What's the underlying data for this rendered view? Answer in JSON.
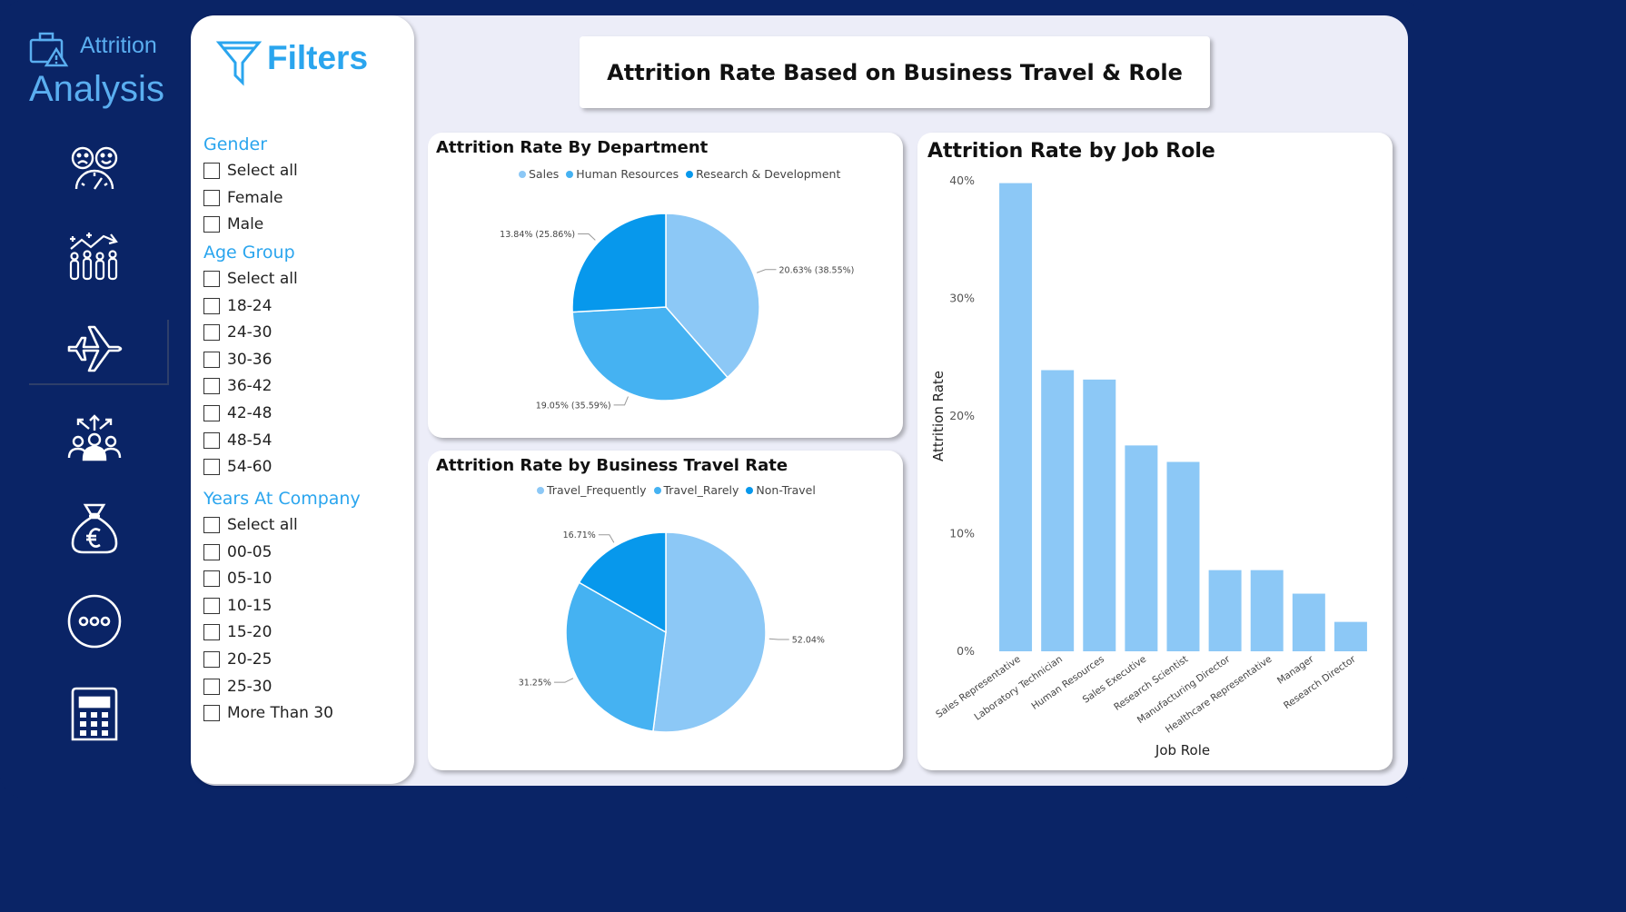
{
  "sidebar": {
    "brand_line1": "Attrition",
    "brand_line2": "Analysis",
    "items": [
      {
        "icon": "satisfaction-gauge-icon"
      },
      {
        "icon": "workforce-growth-icon"
      },
      {
        "icon": "airplane-icon",
        "active": true
      },
      {
        "icon": "team-directions-icon"
      },
      {
        "icon": "euro-money-bag-icon"
      },
      {
        "icon": "more-options-icon"
      },
      {
        "icon": "calculator-icon"
      }
    ]
  },
  "filters": {
    "title": "Filters",
    "groups": [
      {
        "title": "Gender",
        "options": [
          "Select all",
          "Female",
          "Male"
        ]
      },
      {
        "title": "Age Group",
        "options": [
          "Select all",
          "18-24",
          "24-30",
          "30-36",
          "36-42",
          "42-48",
          "48-54",
          "54-60"
        ]
      },
      {
        "title": "Years At Company",
        "options": [
          "Select all",
          "00-05",
          "05-10",
          "10-15",
          "15-20",
          "20-25",
          "25-30",
          "More Than 30"
        ]
      }
    ]
  },
  "header": {
    "title": "Attrition Rate Based on Business Travel & Role"
  },
  "colors": {
    "navy": "#0a2466",
    "accent": "#2aa5ee",
    "light_blue": "#8cc8f6",
    "mid_blue": "#45b2f2",
    "deep_blue": "#0798ec"
  },
  "chart_data": [
    {
      "type": "pie",
      "title": "Attrition Rate By Department",
      "legend_position": "top-center",
      "labels": [
        "Sales",
        "Human Resources",
        "Research & Development"
      ],
      "values": [
        20.63,
        19.05,
        13.84
      ],
      "data_labels": [
        "20.63% (38.55%)",
        "19.05% (35.59%)",
        "13.84% (25.86%)"
      ],
      "colors": [
        "#8cc8f6",
        "#45b2f2",
        "#0798ec"
      ]
    },
    {
      "type": "pie",
      "title": "Attrition Rate by Business Travel Rate",
      "legend_position": "top-center",
      "labels": [
        "Travel_Frequently",
        "Travel_Rarely",
        "Non-Travel"
      ],
      "values": [
        52.04,
        31.25,
        16.71
      ],
      "data_labels": [
        "52.04%",
        "31.25%",
        "16.71%"
      ],
      "colors": [
        "#8cc8f6",
        "#45b2f2",
        "#0798ec"
      ]
    },
    {
      "type": "bar",
      "title": "Attrition Rate by Job Role",
      "xlabel": "Job Role",
      "ylabel": "Attrition Rate",
      "categories": [
        "Sales Representative",
        "Laboratory Technician",
        "Human Resources",
        "Sales Executive",
        "Research Scientist",
        "Manufacturing Director",
        "Healthcare Representative",
        "Manager",
        "Research Director"
      ],
      "values": [
        39.8,
        23.9,
        23.1,
        17.5,
        16.1,
        6.9,
        6.9,
        4.9,
        2.5
      ],
      "ylim": [
        0,
        40
      ],
      "yticks": [
        "0%",
        "10%",
        "20%",
        "30%",
        "40%"
      ],
      "color": "#8cc8f6",
      "grid": false
    }
  ]
}
